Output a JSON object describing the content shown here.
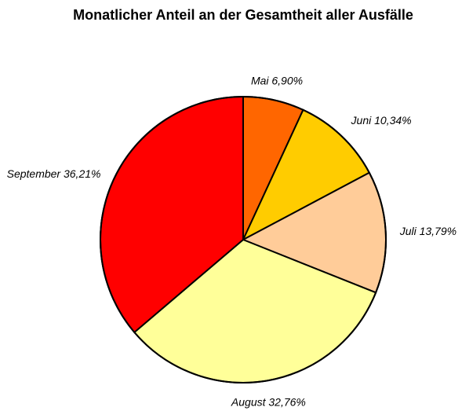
{
  "chart_data": {
    "type": "pie",
    "title": "Monatlicher Anteil an der Gesamtheit aller Ausfälle",
    "slices": [
      {
        "label": "Mai 6,90%",
        "value": 6.9,
        "color": "#ff6600"
      },
      {
        "label": "Juni 10,34%",
        "value": 10.34,
        "color": "#ffcc00"
      },
      {
        "label": "Juli 13,79%",
        "value": 13.79,
        "color": "#ffcc99"
      },
      {
        "label": "August 32,76%",
        "value": 32.76,
        "color": "#ffff99"
      },
      {
        "label": "September 36,21%",
        "value": 36.21,
        "color": "#ff0000"
      }
    ],
    "start_angle": "12 o'clock",
    "direction": "clockwise"
  }
}
